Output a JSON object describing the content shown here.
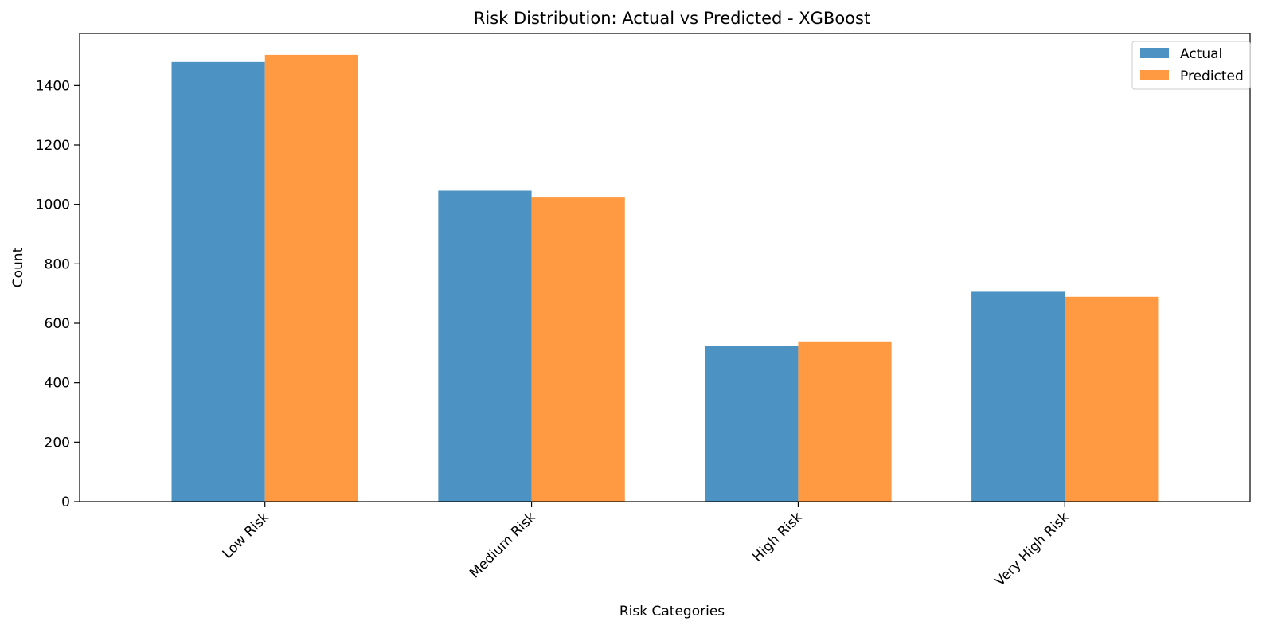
{
  "chart_data": {
    "type": "bar",
    "title": "Risk Distribution: Actual vs Predicted - XGBoost",
    "xlabel": "Risk Categories",
    "ylabel": "Count",
    "categories": [
      "Low Risk",
      "Medium Risk",
      "High Risk",
      "Very High Risk"
    ],
    "series": [
      {
        "name": "Actual",
        "color": "#4c92c3",
        "values": [
          1479,
          1046,
          523,
          706
        ]
      },
      {
        "name": "Predicted",
        "color": "#ff9a43",
        "values": [
          1503,
          1023,
          539,
          689
        ]
      }
    ],
    "ylim": [
      0,
      1575
    ],
    "yticks": [
      0,
      200,
      400,
      600,
      800,
      1000,
      1200,
      1400
    ],
    "grid": false,
    "legend_position": "top-right",
    "xtick_rotation": "45 degrees"
  }
}
